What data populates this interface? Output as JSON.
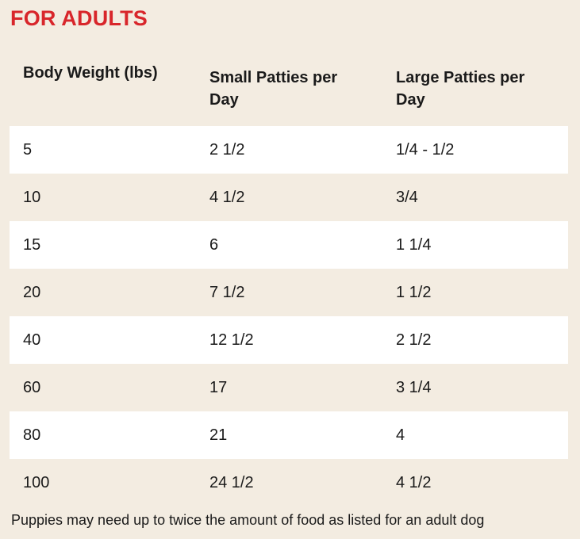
{
  "heading": "FOR ADULTS",
  "table": {
    "headers": [
      "Body Weight (lbs)",
      "Small Patties per Day",
      "Large Patties per Day"
    ],
    "rows": [
      [
        "5",
        "2 1/2",
        "1/4 - 1/2"
      ],
      [
        "10",
        "4 1/2",
        "3/4"
      ],
      [
        "15",
        "6",
        "1 1/4"
      ],
      [
        "20",
        "7 1/2",
        "1 1/2"
      ],
      [
        "40",
        "12 1/2",
        "2 1/2"
      ],
      [
        "60",
        "17",
        "3 1/4"
      ],
      [
        "80",
        "21",
        "4"
      ],
      [
        "100",
        "24 1/2",
        "4 1/2"
      ]
    ]
  },
  "footnote": "Puppies may need up to twice the amount of food as listed for an adult dog",
  "colors": {
    "background": "#f3ece1",
    "heading": "#d8262b",
    "stripe": "#ffffff"
  }
}
